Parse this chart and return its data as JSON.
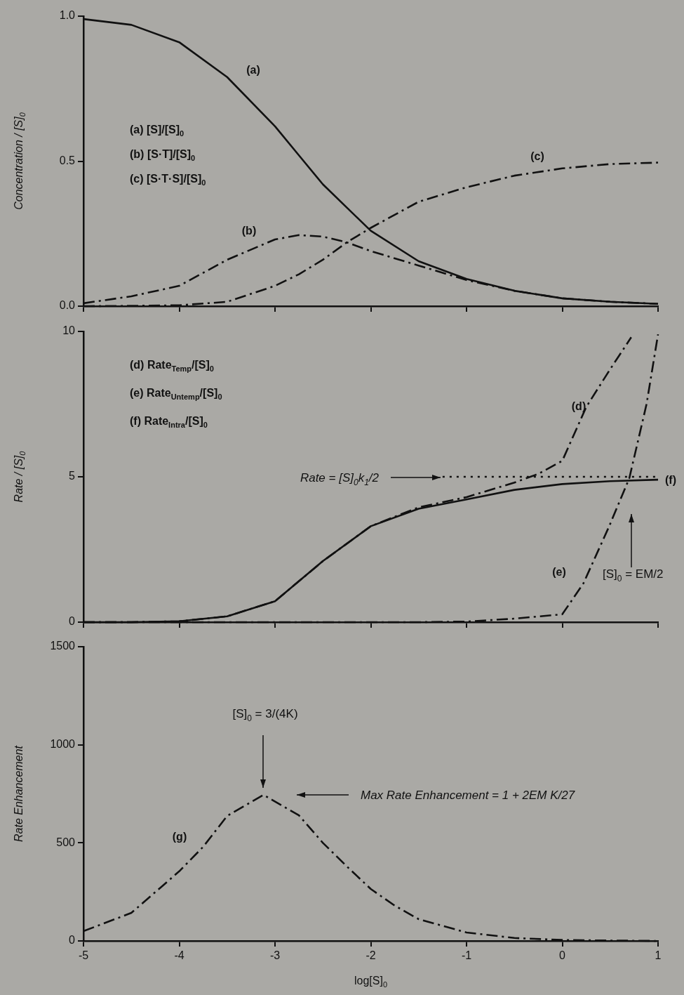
{
  "chart_data": [
    {
      "type": "line",
      "ylabel": "Concentration / [S]$_{0}$",
      "xlim": [
        -5,
        1
      ],
      "xticks": [
        -5,
        -4,
        -3,
        -2,
        -1,
        0,
        1
      ],
      "ylim": [
        0,
        1
      ],
      "yticks": [
        {
          "value": 0,
          "label": "0.0"
        },
        {
          "value": 0.5,
          "label": "0.5"
        },
        {
          "value": 1,
          "label": "1.0"
        }
      ],
      "tick_labels": "y",
      "x": [
        -5,
        -4.5,
        -4,
        -3.5,
        -3,
        -2.75,
        -2.5,
        -2.25,
        -2,
        -1.5,
        -1,
        -0.5,
        0,
        0.5,
        1
      ],
      "series": [
        {
          "name": "(a)",
          "color": "#111111",
          "line_style": "solid",
          "values": [
            0.99,
            0.97,
            0.91,
            0.79,
            0.62,
            0.52,
            0.42,
            0.34,
            0.26,
            0.155,
            0.094,
            0.053,
            0.027,
            0.015,
            0.008
          ]
        },
        {
          "name": "(b)",
          "color": "#111111",
          "line_style": "dashed",
          "values": [
            0.01,
            0.034,
            0.07,
            0.16,
            0.23,
            0.245,
            0.24,
            0.22,
            0.19,
            0.14,
            0.09,
            0.053,
            0.027,
            0.015,
            0.008
          ]
        },
        {
          "name": "(c)",
          "color": "#111111",
          "line_style": "dashed",
          "values": [
            0,
            0.001,
            0.003,
            0.015,
            0.07,
            0.11,
            0.16,
            0.22,
            0.27,
            0.36,
            0.41,
            0.45,
            0.475,
            0.49,
            0.495
          ]
        }
      ],
      "annotations": [
        "(a) [S]/[S]$_{0}$",
        "(b) [S·T]/[S]$_{0}$",
        "(c) [S·T·S]/[S]$_{0}$"
      ]
    },
    {
      "type": "line",
      "ylabel": "Rate / [S]$_{0}$",
      "xlim": [
        -5,
        1
      ],
      "xticks": [
        -5,
        -4,
        -3,
        -2,
        -1,
        0,
        1
      ],
      "ylim": [
        0,
        10
      ],
      "yticks": [
        0,
        5,
        10
      ],
      "tick_labels": "y",
      "series": [
        {
          "name": "(d)",
          "color": "#111111",
          "line_style": "dashed",
          "x": [
            -5,
            -4.5,
            -4,
            -3.5,
            -3,
            -2.5,
            -2,
            -1.5,
            -1,
            -0.5,
            -0.25,
            0,
            0.25,
            0.5,
            0.72
          ],
          "values": [
            0,
            0,
            0.03,
            0.2,
            0.72,
            2.1,
            3.3,
            3.95,
            4.3,
            4.8,
            5.1,
            5.55,
            7.4,
            8.7,
            9.8
          ]
        },
        {
          "name": "(e)",
          "color": "#111111",
          "line_style": "dashed",
          "x": [
            -5,
            -1.5,
            -1,
            -0.5,
            0,
            0.22,
            0.49,
            0.7,
            0.88,
            1
          ],
          "values": [
            0,
            0,
            0.02,
            0.12,
            0.27,
            1.33,
            3.3,
            4.95,
            7.5,
            9.9
          ]
        },
        {
          "name": "(f)",
          "color": "#111111",
          "line_style": "solid",
          "x": [
            -5,
            -4.5,
            -4,
            -3.5,
            -3,
            -2.5,
            -2,
            -1.5,
            -1,
            -0.5,
            0,
            0.5,
            1
          ],
          "values": [
            0,
            0,
            0.03,
            0.2,
            0.72,
            2.1,
            3.3,
            3.9,
            4.22,
            4.55,
            4.75,
            4.85,
            4.9
          ]
        },
        {
          "color": "#111111",
          "line_style": "dotted",
          "x": [
            -1.25,
            1
          ],
          "values": [
            5,
            5
          ]
        }
      ],
      "annotations": [
        "(d) Rate$_{Temp}$/[S]$_{0}$",
        "(e) Rate$_{Untemp}$/[S]$_{0}$",
        "(f) Rate$_{Intra}$/[S]$_{0}$",
        "Rate = [S]$_{0}$k$_{1}$/2",
        "[S]$_{0}$ = EM/2"
      ]
    },
    {
      "type": "line",
      "xlabel": "log[S]$_{0}$",
      "ylabel": "Rate Enhancement",
      "xlim": [
        -5,
        1
      ],
      "xticks": [
        -5,
        -4,
        -3,
        -2,
        -1,
        0,
        1
      ],
      "ylim": [
        0,
        1500
      ],
      "yticks": [
        0,
        500,
        1000,
        1500
      ],
      "line_style": "dashed",
      "x": [
        -5,
        -4.5,
        -4,
        -3.75,
        -3.5,
        -3.12,
        -2.75,
        -2.5,
        -2.25,
        -2,
        -1.75,
        -1.5,
        -1,
        -0.5,
        0,
        0.5,
        1
      ],
      "series": [
        {
          "name": "(g)",
          "color": "#111111",
          "values": [
            50,
            143,
            355,
            480,
            637,
            745,
            640,
            500,
            380,
            265,
            180,
            111,
            43,
            15,
            5,
            2,
            0
          ]
        }
      ],
      "annotations": [
        "[S]$_{0}$ = 3/(4K)",
        "Max Rate Enhancement = 1 + 2EM K/27"
      ]
    }
  ]
}
